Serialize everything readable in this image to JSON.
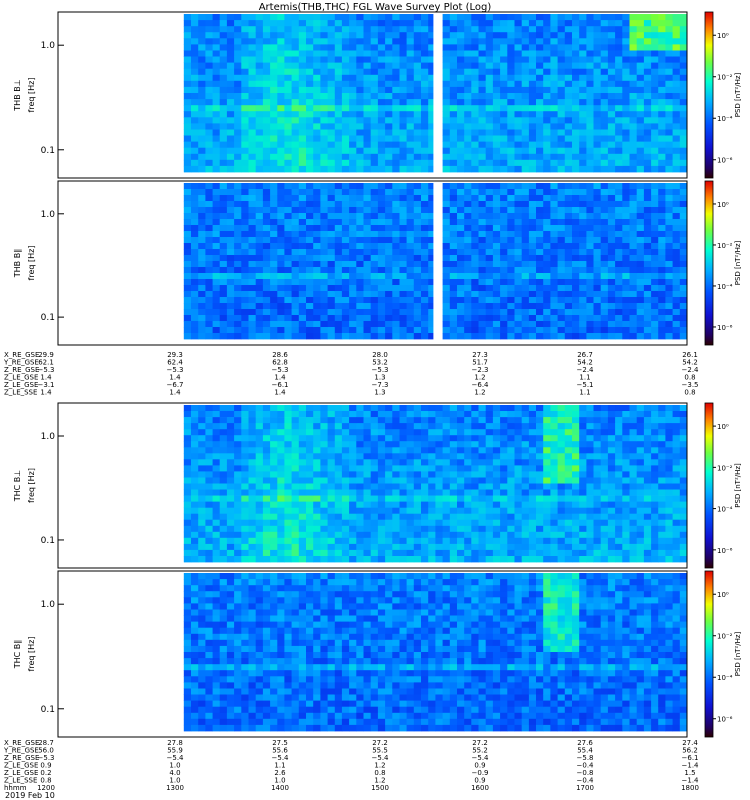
{
  "title": "Artemis(THB,THC) FGL Wave Survey Plot (Log)",
  "date_label": "2019 Feb 10",
  "panels": [
    {
      "probe": "THB",
      "component": "B⊥",
      "ylabel": "freq [Hz]",
      "cblabel": "PSD [nT²/Hz]"
    },
    {
      "probe": "THB",
      "component": "B∥",
      "ylabel": "freq [Hz]",
      "cblabel": "PSD [nT²/Hz]"
    },
    {
      "probe": "THC",
      "component": "B⊥",
      "ylabel": "freq [Hz]",
      "cblabel": "PSD [nT²/Hz]"
    },
    {
      "probe": "THC",
      "component": "B∥",
      "ylabel": "freq [Hz]",
      "cblabel": "PSD [nT²/Hz]"
    }
  ],
  "yticks": [
    "1.0",
    "0.1"
  ],
  "cbar_ticks": [
    "10⁰",
    "10⁻²",
    "10⁻⁴",
    "10⁻⁶"
  ],
  "thb_ephem": {
    "labels": [
      "X_RE_GSE",
      "Y_RE_GSE",
      "Z_RE_GSE",
      "Z_LE_GSE",
      "Z_LE_GSE",
      "Z_LE_SSE"
    ],
    "columns": [
      [
        "29.9",
        "62.1",
        "−5.3",
        "1.4",
        "−3.1",
        "1.4"
      ],
      [
        "29.3",
        "62.4",
        "−5.3",
        "1.4",
        "−6.7",
        "1.4"
      ],
      [
        "28.6",
        "62.8",
        "−5.3",
        "1.4",
        "−6.1",
        "1.4"
      ],
      [
        "28.0",
        "53.2",
        "−5.3",
        "1.3",
        "−7.3",
        "1.3"
      ],
      [
        "27.3",
        "51.7",
        "−2.3",
        "1.2",
        "−6.4",
        "1.2"
      ],
      [
        "26.7",
        "54.2",
        "−2.4",
        "1.1",
        "−5.1",
        "1.1"
      ],
      [
        "26.1",
        "54.2",
        "−2.4",
        "0.8",
        "−3.5",
        "0.8"
      ]
    ]
  },
  "thc_ephem": {
    "labels": [
      "X_RE_GSE",
      "Y_RE_GSE",
      "Z_RE_GSE",
      "Z_LE_GSE",
      "Z_LE_GSE",
      "Z_LE_SSE",
      "hhmm"
    ],
    "columns": [
      [
        "28.7",
        "56.0",
        "−5.3",
        "0.9",
        "0.2",
        "0.8",
        "1200"
      ],
      [
        "27.8",
        "55.9",
        "−5.4",
        "1.0",
        "4.0",
        "1.0",
        "1300"
      ],
      [
        "27.5",
        "55.6",
        "−5.4",
        "1.1",
        "2.6",
        "1.0",
        "1400"
      ],
      [
        "27.2",
        "55.5",
        "−5.4",
        "1.2",
        "0.8",
        "1.2",
        "1500"
      ],
      [
        "27.2",
        "55.2",
        "−5.4",
        "0.9",
        "−0.9",
        "0.9",
        "1600"
      ],
      [
        "27.6",
        "55.4",
        "−5.8",
        "−0.4",
        "−0.8",
        "−0.4",
        "1700"
      ],
      [
        "27.4",
        "56.2",
        "−6.1",
        "−1.4",
        "1.5",
        "−1.4",
        "1800"
      ]
    ]
  },
  "colors": {
    "frame": "#000000",
    "background": "#ffffff"
  },
  "chart_data": [
    {
      "type": "heatmap",
      "panel": "THB B⊥",
      "ylabel": "freq [Hz]",
      "yscale": "log",
      "ylim": [
        0.06,
        2.0
      ],
      "colorbar_label": "PSD [nT²/Hz]",
      "zscale": "log",
      "zlim": [
        1e-07,
        10
      ],
      "data_gap": true
    },
    {
      "type": "heatmap",
      "panel": "THB B∥",
      "ylabel": "freq [Hz]",
      "yscale": "log",
      "ylim": [
        0.06,
        2.0
      ],
      "colorbar_label": "PSD [nT²/Hz]",
      "zscale": "log",
      "zlim": [
        1e-07,
        10
      ],
      "data_gap": true
    },
    {
      "type": "heatmap",
      "panel": "THC B⊥",
      "ylabel": "freq [Hz]",
      "yscale": "log",
      "ylim": [
        0.06,
        2.0
      ],
      "colorbar_label": "PSD [nT²/Hz]",
      "zscale": "log",
      "zlim": [
        1e-07,
        10
      ],
      "data_gap": false
    },
    {
      "type": "heatmap",
      "panel": "THC B∥",
      "ylabel": "freq [Hz]",
      "yscale": "log",
      "ylim": [
        0.06,
        2.0
      ],
      "colorbar_label": "PSD [nT²/Hz]",
      "zscale": "log",
      "zlim": [
        1e-07,
        10
      ],
      "data_gap": false
    }
  ]
}
